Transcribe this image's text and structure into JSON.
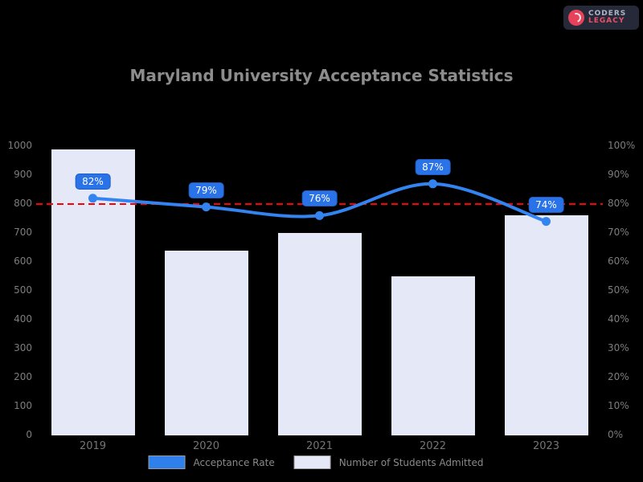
{
  "logo": {
    "line1": "CODERS",
    "line2": "LEGACY",
    "icon": "red-globe-icon",
    "background": "#262a38",
    "accent": "#e8425a"
  },
  "title": "Maryland University Acceptance Statistics",
  "legend": [
    {
      "label": "Acceptance Rate",
      "swatch": "#2f80ed"
    },
    {
      "label": "Number of Students Admitted",
      "swatch": "#e4e8f7"
    }
  ],
  "chart_data": {
    "type": "bar",
    "subtype": "dual-axis bar+line combo",
    "title": "Maryland University Acceptance Statistics",
    "categories": [
      "2019",
      "2020",
      "2021",
      "2022",
      "2023"
    ],
    "series": [
      {
        "name": "Acceptance Rate",
        "type": "line",
        "axis": "right",
        "unit": "%",
        "values": [
          82,
          79,
          76,
          87,
          74
        ],
        "labels": [
          "82%",
          "79%",
          "76%",
          "87%",
          "74%"
        ],
        "color": "#3384f0",
        "label_bg": "#2a72e8"
      },
      {
        "name": "Number of Students Admitted",
        "type": "bar",
        "axis": "left",
        "values": [
          990,
          640,
          700,
          550,
          760
        ],
        "color": "#e4e8f7"
      }
    ],
    "threshold_line": {
      "value": 80,
      "axis": "right",
      "color": "#ff0000",
      "style": "dashed"
    },
    "left_axis": {
      "min": 0,
      "max": 1000,
      "step": 100,
      "ticks": [
        "1000",
        "900",
        "800",
        "700",
        "600",
        "500",
        "400",
        "300",
        "200",
        "100",
        "0"
      ]
    },
    "right_axis": {
      "min": 0,
      "max": 100,
      "step": 10,
      "ticks": [
        "100%",
        "90%",
        "80%",
        "70%",
        "60%",
        "50%",
        "40%",
        "30%",
        "20%",
        "10%",
        "0%"
      ]
    },
    "grid": false,
    "legend_position": "bottom-center",
    "background": "#000000"
  }
}
